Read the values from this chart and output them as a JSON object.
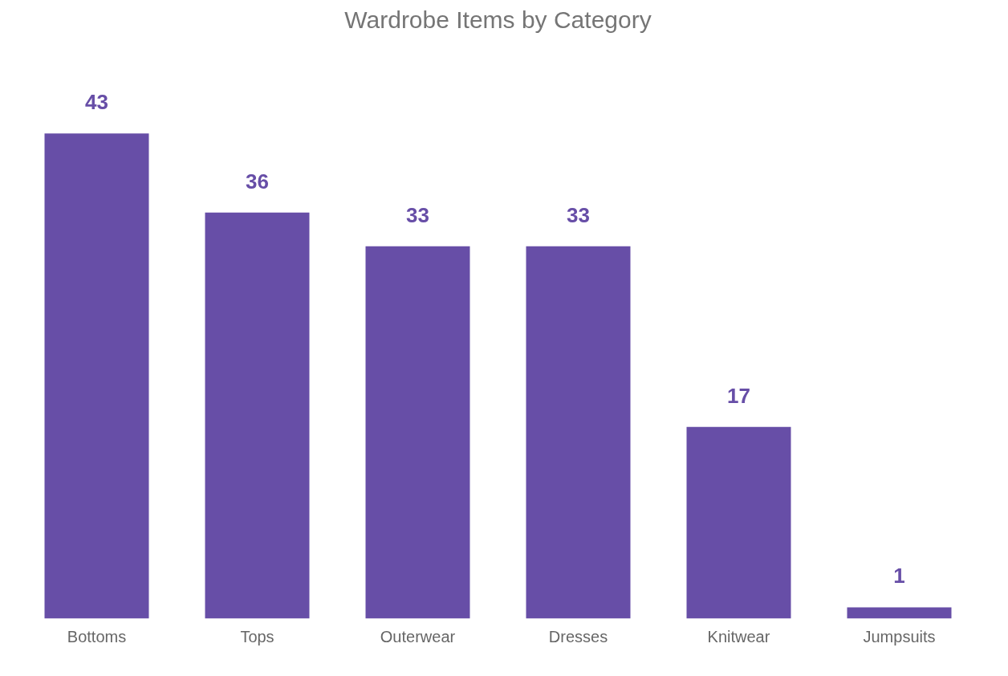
{
  "chart_data": {
    "type": "bar",
    "title": "Wardrobe Items by Category",
    "categories": [
      "Bottoms",
      "Tops",
      "Outerwear",
      "Dresses",
      "Knitwear",
      "Jumpsuits"
    ],
    "values": [
      43,
      36,
      33,
      33,
      17,
      1
    ],
    "color": "#674ea7",
    "data_labels": true,
    "grid": false
  }
}
